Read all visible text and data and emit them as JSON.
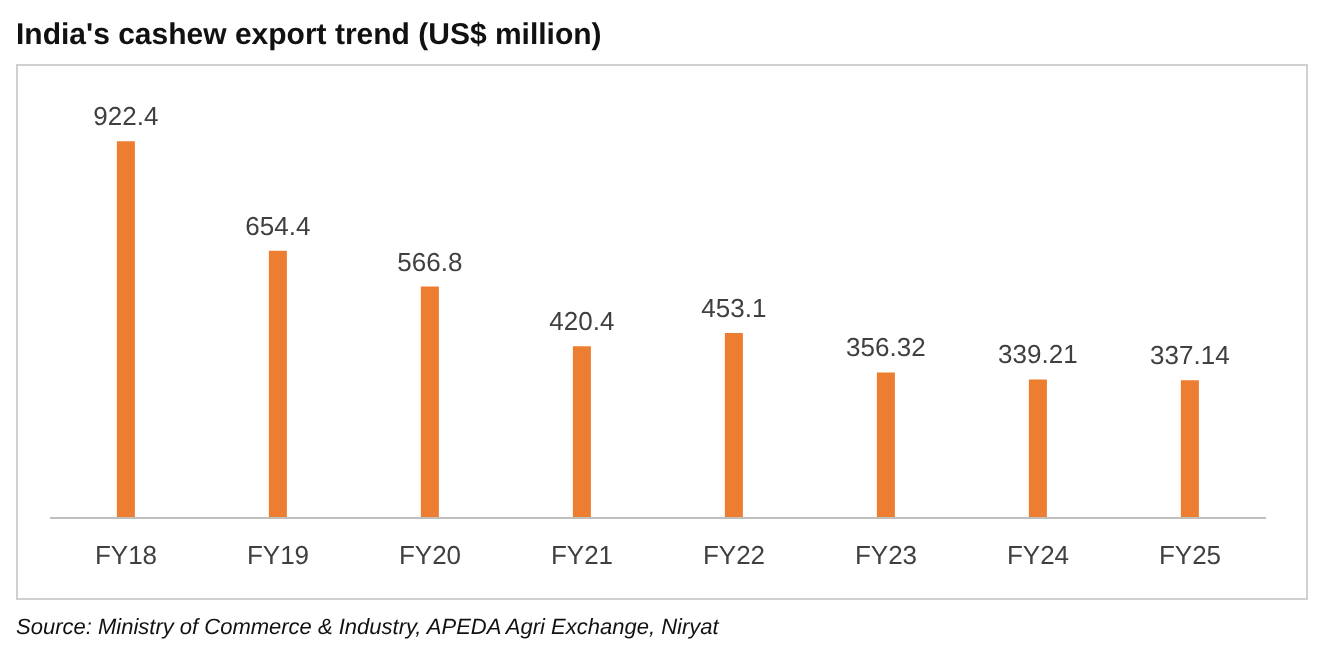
{
  "chart_data": {
    "type": "bar",
    "title": "India's cashew export trend (US$ million)",
    "categories": [
      "FY18",
      "FY19",
      "FY20",
      "FY21",
      "FY22",
      "FY23",
      "FY24",
      "FY25"
    ],
    "values": [
      922.4,
      654.4,
      566.8,
      420.4,
      453.1,
      356.32,
      339.21,
      337.14
    ],
    "color": "#ed7d31",
    "data_labels": true,
    "grid": false,
    "legend": false,
    "annotations": [
      "Source: Ministry of Commerce & Industry, APEDA Agri Exchange, Niryat"
    ]
  }
}
